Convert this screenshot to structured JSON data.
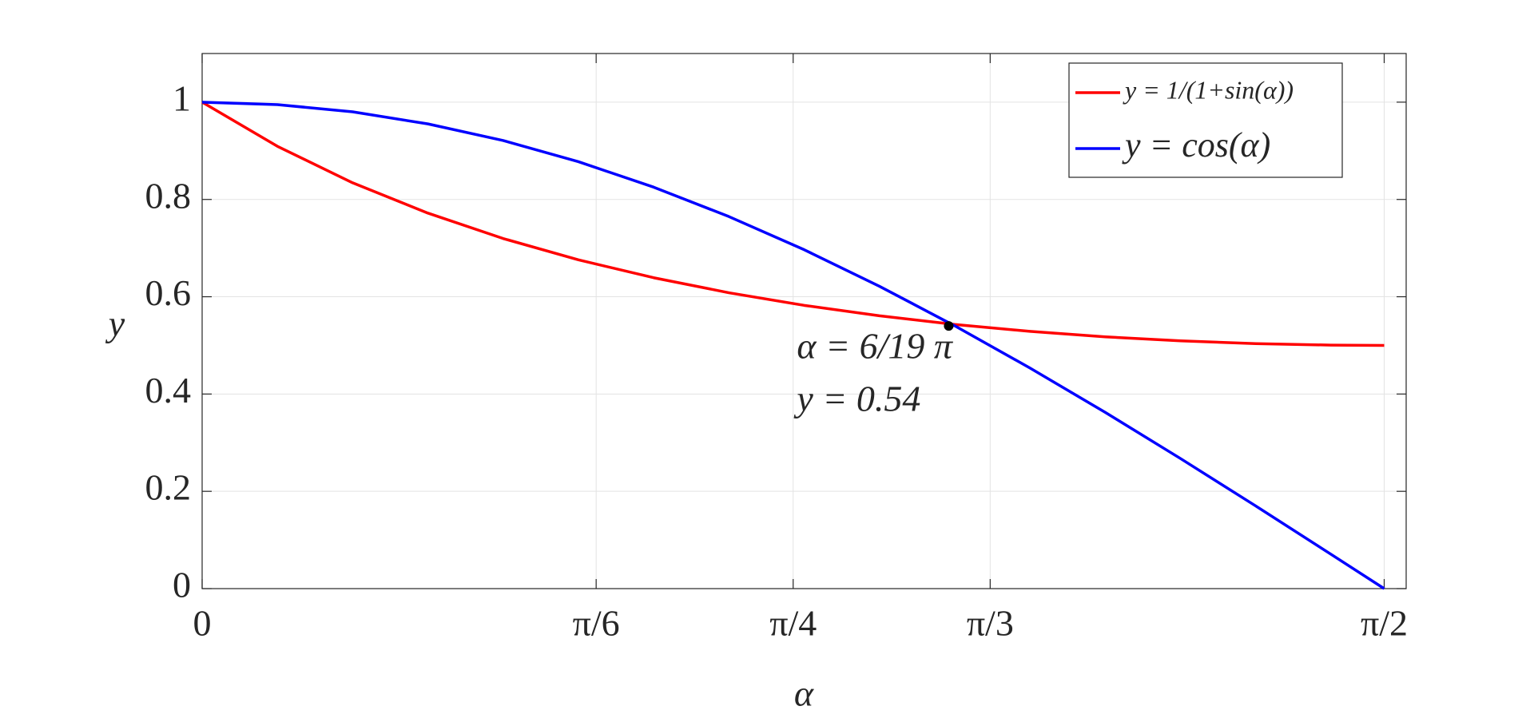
{
  "chart_data": {
    "type": "line",
    "x_label": "α",
    "y_label": "y",
    "x": [
      0,
      0.1,
      0.2,
      0.3,
      0.4,
      0.5,
      0.6,
      0.7,
      0.8,
      0.9,
      1.0,
      1.1,
      1.2,
      1.3,
      1.4,
      1.5,
      1.5708
    ],
    "series": [
      {
        "name": "y = 1/(1+sin(α))",
        "color": "#ff0000",
        "values": [
          1,
          0.9093,
          0.8342,
          0.7719,
          0.7197,
          0.6759,
          0.6391,
          0.6082,
          0.5823,
          0.5608,
          0.543,
          0.5288,
          0.5176,
          0.5093,
          0.5037,
          0.5006,
          0.5
        ]
      },
      {
        "name": "y = cos(α)",
        "color": "#0000ff",
        "values": [
          1,
          0.995,
          0.9801,
          0.9553,
          0.9211,
          0.8776,
          0.8253,
          0.7648,
          0.6967,
          0.6216,
          0.5403,
          0.4536,
          0.3624,
          0.2675,
          0.17,
          0.0707,
          0
        ]
      }
    ],
    "point": {
      "x": 0.9921,
      "y": 0.54,
      "color": "#000000"
    },
    "annotation": [
      "α = 6/19 π",
      "y = 0.54"
    ],
    "xlim": [
      0,
      1.6
    ],
    "ylim": [
      0,
      1.1
    ],
    "xticks": [
      0,
      {
        "value": 0.5236,
        "label": "π/6"
      },
      {
        "value": 0.7854,
        "label": "π/4"
      },
      {
        "value": 1.0472,
        "label": "π/3"
      },
      {
        "value": 1.5708,
        "label": "π/2"
      }
    ],
    "yticks": [
      0,
      0.2,
      0.4,
      0.6,
      0.8,
      1
    ],
    "grid": true,
    "legend": "upper right"
  }
}
